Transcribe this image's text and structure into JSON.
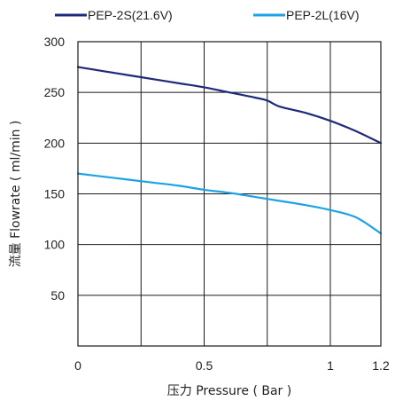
{
  "chart_data": {
    "type": "line",
    "title": "",
    "xlabel": "压力 Pressure ( Bar )",
    "ylabel": "流量 Flowrate ( ml/min )",
    "xlim": [
      0,
      1.2
    ],
    "ylim": [
      0,
      300
    ],
    "xticks": [
      0,
      0.25,
      0.5,
      0.75,
      1,
      1.25
    ],
    "xtick_labels": [
      "0",
      "0.5",
      "1",
      "1.2"
    ],
    "xtick_label_values": [
      0,
      0.5,
      1,
      1.2
    ],
    "yticks": [
      0,
      50,
      100,
      150,
      200,
      250,
      300
    ],
    "ytick_labels": [
      "50",
      "100",
      "150",
      "200",
      "250",
      "300"
    ],
    "ytick_label_values": [
      50,
      100,
      150,
      200,
      250,
      300
    ],
    "grid": true,
    "legend_position": "top",
    "series": [
      {
        "name": "PEP-2S(21.6V)",
        "color": "#1f2a7a",
        "x": [
          0,
          0.1,
          0.2,
          0.3,
          0.4,
          0.5,
          0.6,
          0.7,
          0.75,
          0.8,
          0.9,
          1.0,
          1.1,
          1.2
        ],
        "y": [
          275,
          271,
          267,
          263,
          259,
          255,
          250,
          245,
          242,
          236,
          230,
          222,
          212,
          200
        ]
      },
      {
        "name": "PEP-2L(16V)",
        "color": "#1ea3e2",
        "x": [
          0,
          0.1,
          0.2,
          0.3,
          0.4,
          0.5,
          0.6,
          0.7,
          0.8,
          0.9,
          1.0,
          1.1,
          1.2
        ],
        "y": [
          170,
          167,
          164,
          161,
          158,
          154,
          151,
          147,
          143,
          139,
          134,
          127,
          111
        ]
      }
    ]
  }
}
